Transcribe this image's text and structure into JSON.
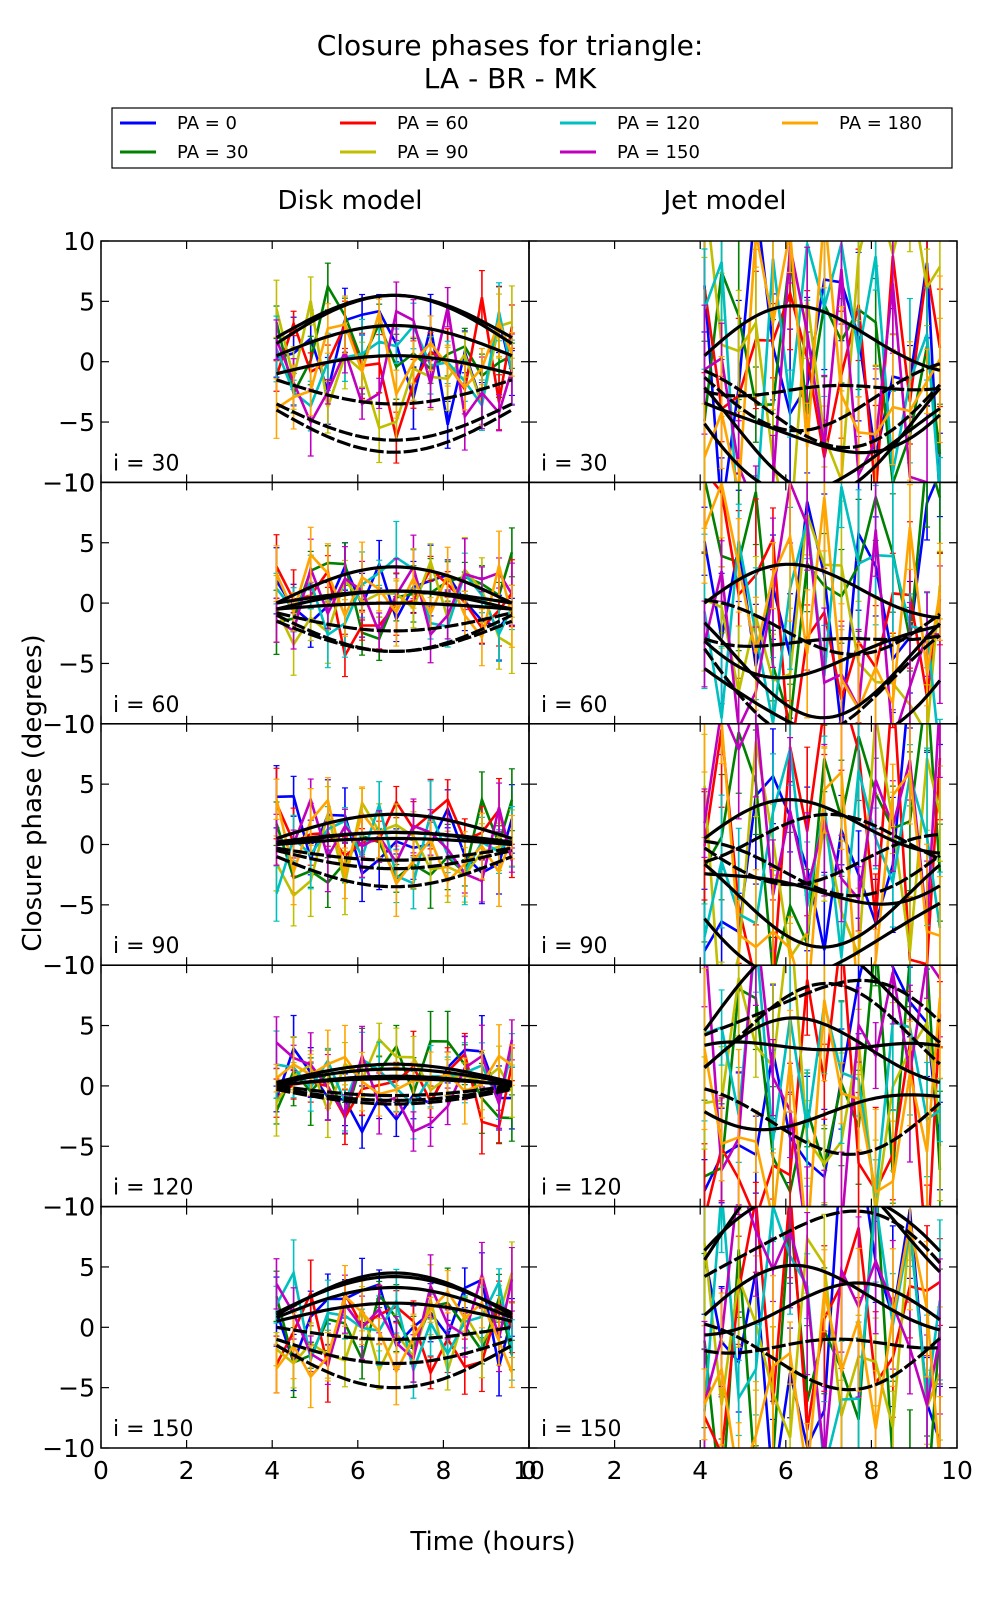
{
  "chart_data": {
    "type": "line",
    "title_line1": "Closure phases for triangle:",
    "title_line2": "LA - BR - MK",
    "column_titles": [
      "Disk model",
      "Jet model"
    ],
    "xlabel": "Time (hours)",
    "ylabel": "Closure phase (degrees)",
    "xlim": [
      0,
      10
    ],
    "ylim": [
      -10,
      10
    ],
    "x_ticks": [
      "0",
      "2",
      "4",
      "6",
      "8",
      "10"
    ],
    "y_ticks": [
      "−10",
      "−5",
      "0",
      "5",
      "10"
    ],
    "inclinations": [
      "i = 30",
      "i = 60",
      "i = 90",
      "i = 120",
      "i = 150"
    ],
    "time_points": [
      4.1,
      4.5,
      4.9,
      5.3,
      5.7,
      6.1,
      6.5,
      6.9,
      7.3,
      7.7,
      8.1,
      8.5,
      8.9,
      9.3,
      9.6
    ],
    "legend": [
      {
        "label": "PA = 0",
        "color": "#0000ff"
      },
      {
        "label": "PA = 30",
        "color": "#008000"
      },
      {
        "label": "PA = 60",
        "color": "#ff0000"
      },
      {
        "label": "PA = 90",
        "color": "#bfbf00"
      },
      {
        "label": "PA = 120",
        "color": "#00bfbf"
      },
      {
        "label": "PA = 150",
        "color": "#bf00bf"
      },
      {
        "label": "PA = 180",
        "color": "#ffa500"
      }
    ],
    "model_color": "#000000",
    "model_curves": {
      "disk": [
        [
          {
            "amp": 3.5,
            "off": 2.0
          },
          {
            "amp": -3.0,
            "off": -3.5
          },
          {
            "amp": 4.0,
            "off": 1.5
          },
          {
            "amp": -2.0,
            "off": -1.5
          },
          {
            "amp": 2.5,
            "off": 0.5
          },
          {
            "amp": -3.5,
            "off": -4.0
          },
          {
            "amp": 1.5,
            "off": -1.0
          }
        ],
        [
          {
            "amp": 3.0,
            "off": 0.0
          },
          {
            "amp": -3.0,
            "off": -1.0
          },
          {
            "amp": 1.5,
            "off": -0.5
          },
          {
            "amp": -2.5,
            "off": -1.5
          },
          {
            "amp": 1.0,
            "off": 0.0
          },
          {
            "amp": -1.5,
            "off": -0.8
          },
          {
            "amp": 0.5,
            "off": -0.5
          }
        ],
        [
          {
            "amp": 2.0,
            "off": 0.5
          },
          {
            "amp": -2.5,
            "off": -1.0
          },
          {
            "amp": 1.0,
            "off": 0.0
          },
          {
            "amp": -1.5,
            "off": -0.5
          },
          {
            "amp": 0.8,
            "off": 0.2
          },
          {
            "amp": -1.0,
            "off": -0.3
          },
          {
            "amp": 0.5,
            "off": 0.0
          }
        ],
        [
          {
            "amp": 1.2,
            "off": 0.2
          },
          {
            "amp": -1.0,
            "off": -0.2
          },
          {
            "amp": 0.8,
            "off": 0.0
          },
          {
            "amp": -0.8,
            "off": 0.0
          },
          {
            "amp": 1.5,
            "off": 0.3
          },
          {
            "amp": -1.2,
            "off": -0.3
          },
          {
            "amp": 0.5,
            "off": 0.1
          }
        ],
        [
          {
            "amp": 3.5,
            "off": 1.0
          },
          {
            "amp": -3.5,
            "off": -1.5
          },
          {
            "amp": 2.5,
            "off": 0.8
          },
          {
            "amp": -2.0,
            "off": -1.0
          },
          {
            "amp": 3.0,
            "off": 1.2
          },
          {
            "amp": -1.0,
            "off": 0.0
          },
          {
            "amp": 1.5,
            "off": 0.5
          }
        ]
      ],
      "jet": [
        [
          {
            "amp": 3.0,
            "off": 0.5
          },
          {
            "amp": -4.0,
            "off": -2.0
          },
          {
            "amp": -6.0,
            "off": -3.5
          },
          {
            "amp": -3.0,
            "off": -1.5
          },
          {
            "amp": -7.0,
            "off": -4.0
          },
          {
            "amp": -2.5,
            "off": -1.0
          },
          {
            "amp": -5.0,
            "off": -3.0
          }
        ],
        [
          {
            "amp": 2.0,
            "off": 0.0
          },
          {
            "amp": -2.0,
            "off": -1.0
          },
          {
            "amp": -5.0,
            "off": -3.0
          },
          {
            "amp": -6.0,
            "off": -4.0
          },
          {
            "amp": -4.0,
            "off": -2.0
          },
          {
            "amp": -3.0,
            "off": -1.5
          },
          {
            "amp": -7.0,
            "off": -5.0
          }
        ],
        [
          {
            "amp": 2.0,
            "off": 0.5
          },
          {
            "amp": -2.0,
            "off": -1.0
          },
          {
            "amp": -4.0,
            "off": -3.0
          },
          {
            "amp": -1.5,
            "off": -0.5
          },
          {
            "amp": -6.0,
            "off": -5.0
          },
          {
            "amp": 1.0,
            "off": 0.0
          },
          {
            "amp": -3.0,
            "off": -2.0
          }
        ],
        [
          {
            "amp": 3.0,
            "off": 1.5
          },
          {
            "amp": -3.0,
            "off": -1.5
          },
          {
            "amp": 2.5,
            "off": 2.0
          },
          {
            "amp": 5.0,
            "off": 4.0
          },
          {
            "amp": -2.0,
            "off": -1.0
          },
          {
            "amp": 4.0,
            "off": 3.0
          },
          {
            "amp": 6.0,
            "off": 5.0
          }
        ],
        [
          {
            "amp": 3.0,
            "off": 1.0
          },
          {
            "amp": -3.0,
            "off": -1.0
          },
          {
            "amp": 8.0,
            "off": 5.0
          },
          {
            "amp": 6.0,
            "off": 4.0
          },
          {
            "amp": 2.0,
            "off": 0.5
          },
          {
            "amp": -2.0,
            "off": -0.5
          },
          {
            "amp": 7.0,
            "off": 6.0
          }
        ]
      ]
    },
    "noise_scale": {
      "disk": [
        5.0,
        3.5,
        3.5,
        3.0,
        4.0
      ],
      "jet": [
        12.0,
        10.0,
        12.0,
        12.0,
        12.0
      ]
    },
    "error_bar_scale": {
      "disk": 2.0,
      "jet": 5.0
    }
  }
}
